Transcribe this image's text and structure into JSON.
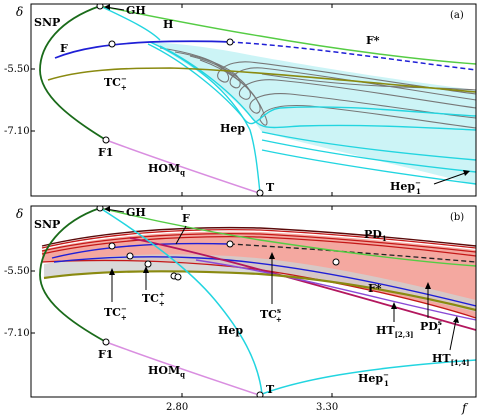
{
  "axes": {
    "y_symbol": "δ",
    "x_symbol": "f",
    "y_ticks": [
      "-5.50",
      "-7.10"
    ],
    "x_ticks": [
      "2.80",
      "3.30"
    ]
  },
  "panel_a": {
    "tag": "(a)",
    "labels": {
      "snp": "SNP",
      "gh": "GH",
      "h": "H",
      "f": "F",
      "f_star": "F*",
      "tc_main": "TC",
      "tc_sub": "+",
      "tc_sup": "−",
      "f1": "F1",
      "hom_main": "HOM",
      "hom_sub": "q",
      "hep": "Hep",
      "t": "T",
      "hep1_main": "Hep",
      "hep1_sub": "1",
      "hep1_sup": "−"
    }
  },
  "panel_b": {
    "tag": "(b)",
    "labels": {
      "snp": "SNP",
      "gh": "GH",
      "f": "F",
      "pd1_main": "PD",
      "pd1_sub": "1",
      "f_star": "F*",
      "tc_main": "TC",
      "tc_sub": "+",
      "tc_sup": "−",
      "tc2_main": "TC",
      "tc2_sub": "+",
      "tc2_sup": "+",
      "tcs_main": "TC",
      "tcs_sub": "+",
      "tcs_sup": "s",
      "f1": "F1",
      "hom_main": "HOM",
      "hom_sub": "q",
      "hep": "Hep",
      "t": "T",
      "hep1_main": "Hep",
      "hep1_sub": "1",
      "hep1_sup": "−",
      "ht23_main": "HT",
      "ht23_sub": "[2,3]",
      "pd1s_main": "PD",
      "pd1s_sub": "1",
      "pd1s_sup": "s",
      "ht14_main": "HT",
      "ht14_sub": "[1,4]"
    }
  },
  "colors": {
    "snp": "#1a6b1a",
    "fold": "#1f1fd6",
    "homoclinic_h": "#55cc44",
    "tc": "#8a8a10",
    "hep": "#22d5e0",
    "hep_fill": "#ccf4f6",
    "hom": "#d98ee0",
    "pd": "#c41818",
    "pd_fill": "#f4a8a0",
    "ht": "#b3175e",
    "grey": "#777777",
    "grey_fill": "#d0d0d0"
  }
}
